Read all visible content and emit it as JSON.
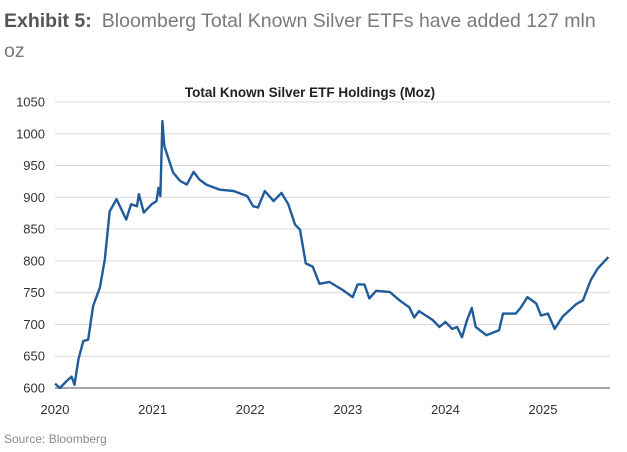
{
  "heading": {
    "label": "Exhibit 5:",
    "text": "Bloomberg Total Known Silver ETFs have added 127 mln oz"
  },
  "source": "Source: Bloomberg",
  "chart_data": {
    "type": "line",
    "title": "Total Known Silver ETF Holdings (Moz)",
    "xlabel": "",
    "ylabel": "",
    "xlim": [
      2020,
      2025.72
    ],
    "ylim": [
      600,
      1050
    ],
    "x_ticks": [
      "2020",
      "2021",
      "2022",
      "2023",
      "2024",
      "2025"
    ],
    "y_ticks": [
      600,
      650,
      700,
      750,
      800,
      850,
      900,
      950,
      1000,
      1050
    ],
    "grid": "horizontal",
    "color": "#1f5c99",
    "series": [
      {
        "x": [
          2020.0,
          2020.05,
          2020.12,
          2020.17,
          2020.2,
          2020.24,
          2020.29,
          2020.34,
          2020.39,
          2020.46,
          2020.51,
          2020.56,
          2020.63,
          2020.68,
          2020.73,
          2020.78,
          2020.84,
          2020.86,
          2020.91,
          2020.99,
          2021.04,
          2021.06,
          2021.08,
          2021.1,
          2021.12,
          2021.16,
          2021.21,
          2021.28,
          2021.35,
          2021.42,
          2021.48,
          2021.55,
          2021.69,
          2021.83,
          2021.97,
          2022.03,
          2022.08,
          2022.15,
          2022.24,
          2022.32,
          2022.39,
          2022.46,
          2022.51,
          2022.57,
          2022.64,
          2022.71,
          2022.81,
          2022.95,
          2023.05,
          2023.1,
          2023.17,
          2023.22,
          2023.29,
          2023.43,
          2023.53,
          2023.63,
          2023.68,
          2023.73,
          2023.87,
          2023.94,
          2024.0,
          2024.07,
          2024.12,
          2024.17,
          2024.22,
          2024.27,
          2024.31,
          2024.42,
          2024.55,
          2024.59,
          2024.72,
          2024.77,
          2024.84,
          2024.93,
          2024.98,
          2025.05,
          2025.12,
          2025.2,
          2025.34,
          2025.41,
          2025.49,
          2025.56,
          2025.67
        ],
        "values": [
          607,
          600,
          611,
          618,
          605,
          645,
          674,
          676,
          729,
          758,
          802,
          878,
          897,
          881,
          865,
          889,
          886,
          905,
          876,
          889,
          894,
          915,
          902,
          1020,
          981,
          962,
          939,
          926,
          920,
          940,
          928,
          920,
          912,
          910,
          902,
          886,
          884,
          910,
          894,
          907,
          889,
          857,
          849,
          796,
          791,
          764,
          767,
          754,
          743,
          763,
          763,
          741,
          753,
          751,
          738,
          727,
          711,
          721,
          707,
          696,
          704,
          693,
          696,
          680,
          706,
          726,
          696,
          683,
          691,
          717,
          717,
          726,
          743,
          733,
          714,
          717,
          693,
          712,
          732,
          738,
          770,
          788,
          806
        ]
      }
    ]
  }
}
